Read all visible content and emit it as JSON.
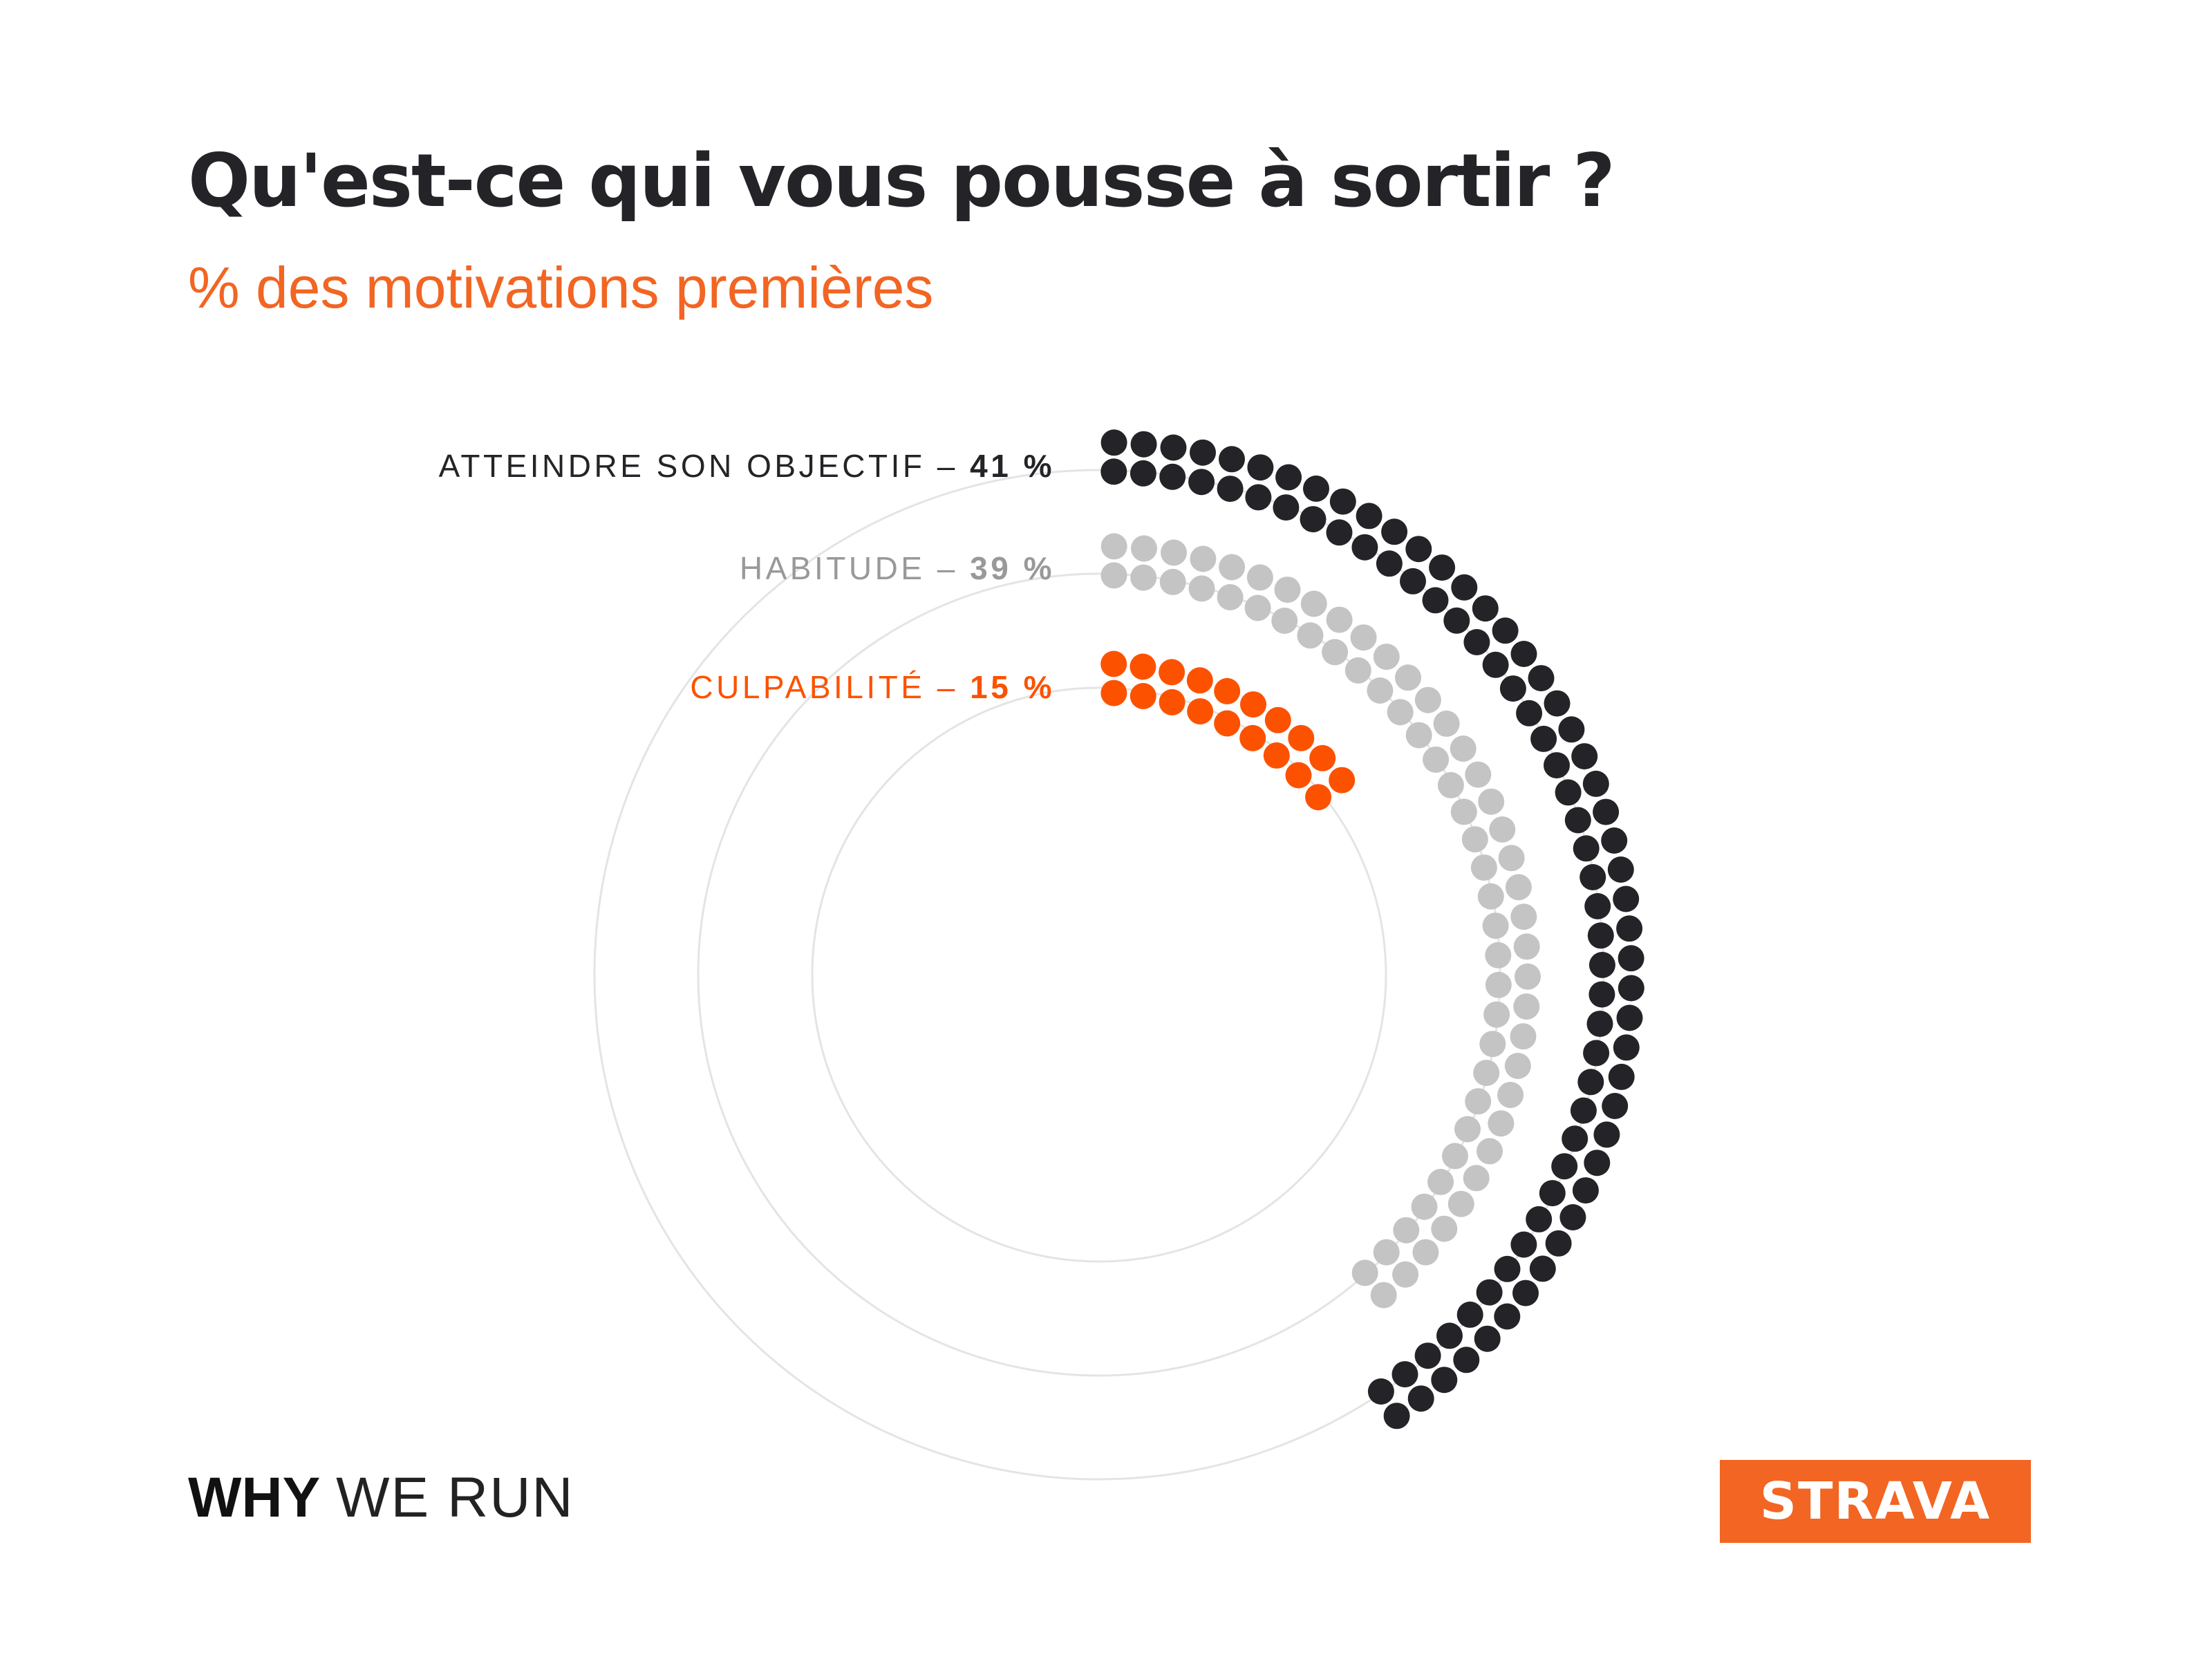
{
  "title": "Qu'est-ce qui vous pousse à sortir ?",
  "subtitle": "% des motivations premières",
  "chart_data": {
    "type": "radial-dot",
    "unit": "%",
    "series": [
      {
        "name": "ATTEINDRE SON OBJECTIF",
        "value": 41,
        "value_label": "41 %",
        "color": "#242428"
      },
      {
        "name": "HABITUDE",
        "value": 39,
        "value_label": "39 %",
        "color": "#c4c4c4",
        "label_color": "#999999"
      },
      {
        "name": "CULPABILITÉ",
        "value": 15,
        "value_label": "15 %",
        "color": "#fc5200"
      }
    ],
    "guide_ring_color": "#e4e4e4"
  },
  "footer": {
    "brand_bold": "WHY",
    "brand_light": "WE RUN",
    "logo": "STRAVA",
    "logo_color": "#f26522"
  }
}
